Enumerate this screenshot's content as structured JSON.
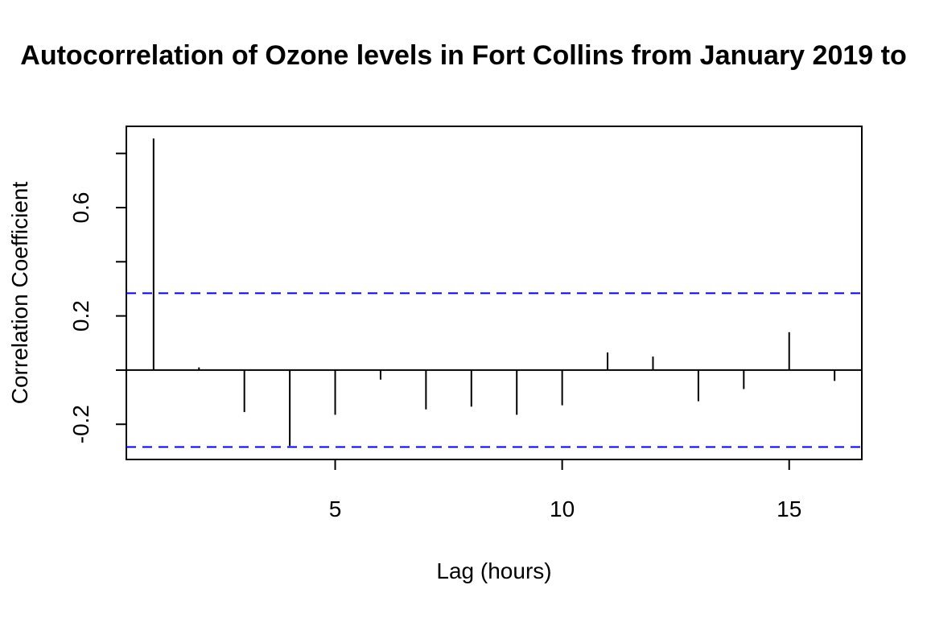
{
  "chart_data": {
    "type": "bar",
    "title": "Autocorrelation of Ozone levels in Fort Collins from January 2019 to",
    "xlabel": "Lag (hours)",
    "ylabel": "Correlation Coefficient",
    "xlim": [
      0.4,
      16.6
    ],
    "ylim": [
      -0.33,
      0.9
    ],
    "x_ticks": [
      5,
      10,
      15
    ],
    "x_tick_labels": [
      "5",
      "10",
      "15"
    ],
    "y_ticks": [
      -0.2,
      0.0,
      0.2,
      0.4,
      0.6,
      0.8
    ],
    "y_tick_labels": [
      "-0.2",
      "",
      "0.2",
      "",
      "0.6",
      ""
    ],
    "zero_line": 0,
    "confidence_bounds": [
      0.284,
      -0.284
    ],
    "confidence_color": "#0000ff",
    "bar_color": "#000000",
    "lags": [
      1,
      2,
      3,
      4,
      5,
      6,
      7,
      8,
      9,
      10,
      11,
      12,
      13,
      14,
      15,
      16
    ],
    "values": [
      0.855,
      0.01,
      -0.155,
      -0.28,
      -0.165,
      -0.035,
      -0.145,
      -0.135,
      -0.165,
      -0.13,
      0.065,
      0.05,
      -0.115,
      -0.07,
      0.14,
      -0.04
    ],
    "grid": false
  }
}
